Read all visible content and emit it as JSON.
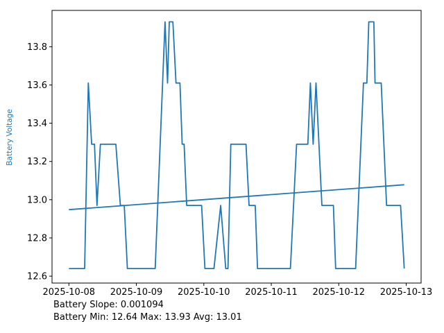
{
  "figure": {
    "ylabel": "Battery Voltage",
    "annotation_line1": "Battery Slope: 0.001094",
    "annotation_line2": "Battery Min: 12.64 Max: 13.93 Avg: 13.01",
    "accent_color": "#1f77b4",
    "text_color": "#000000",
    "background_color": "#ffffff"
  },
  "chart_data": {
    "type": "line",
    "title": "",
    "ylabel": "Battery Voltage",
    "xlabel_lines": [
      "Battery Slope: 0.001094",
      "Battery Min: 12.64 Max: 13.93 Avg: 13.01"
    ],
    "x_unit": "hours since 2025-10-08 00:00",
    "xlim": [
      -6,
      125.3
    ],
    "ylim": [
      12.564,
      13.99
    ],
    "x_ticks": [
      0,
      24,
      48,
      72,
      96,
      120
    ],
    "x_ticklabels": [
      "2025-10-08",
      "2025-10-09",
      "2025-10-10",
      "2025-10-11",
      "2025-10-12",
      "2025-10-13"
    ],
    "y_ticks": [
      12.6,
      12.8,
      13.0,
      13.2,
      13.4,
      13.6,
      13.8
    ],
    "y_ticklabels": [
      "12.6",
      "12.8",
      "13.0",
      "13.2",
      "13.4",
      "13.6",
      "13.8"
    ],
    "grid": false,
    "legend": null,
    "stats": {
      "slope": 0.001094,
      "min": 12.64,
      "max": 13.93,
      "avg": 13.01
    },
    "series": [
      {
        "name": "battery_voltage",
        "color": "#1f77b4",
        "points": [
          [
            0,
            12.64
          ],
          [
            5.6,
            12.64
          ],
          [
            6.9,
            13.61
          ],
          [
            8.1,
            13.29
          ],
          [
            9.1,
            13.29
          ],
          [
            10,
            12.97
          ],
          [
            11.2,
            13.29
          ],
          [
            16.7,
            13.29
          ],
          [
            18.3,
            12.97
          ],
          [
            19.7,
            12.97
          ],
          [
            20.8,
            12.64
          ],
          [
            30.7,
            12.64
          ],
          [
            34.2,
            13.93
          ],
          [
            35.1,
            13.61
          ],
          [
            35.7,
            13.93
          ],
          [
            37,
            13.93
          ],
          [
            38.1,
            13.61
          ],
          [
            39.5,
            13.61
          ],
          [
            40.3,
            13.29
          ],
          [
            41,
            13.29
          ],
          [
            41.9,
            12.97
          ],
          [
            47.2,
            12.97
          ],
          [
            48.4,
            12.64
          ],
          [
            51.6,
            12.64
          ],
          [
            54,
            12.97
          ],
          [
            55.8,
            12.64
          ],
          [
            56.6,
            12.64
          ],
          [
            57.6,
            13.29
          ],
          [
            63,
            13.29
          ],
          [
            64.1,
            12.97
          ],
          [
            66.3,
            12.97
          ],
          [
            67.1,
            12.64
          ],
          [
            78.8,
            12.64
          ],
          [
            81,
            13.29
          ],
          [
            85,
            13.29
          ],
          [
            85.9,
            13.61
          ],
          [
            86.9,
            13.29
          ],
          [
            87.9,
            13.61
          ],
          [
            90,
            12.97
          ],
          [
            94.1,
            12.97
          ],
          [
            94.9,
            12.64
          ],
          [
            102,
            12.64
          ],
          [
            104.8,
            13.61
          ],
          [
            106,
            13.61
          ],
          [
            106.7,
            13.93
          ],
          [
            108.5,
            13.93
          ],
          [
            108.9,
            13.61
          ],
          [
            111.1,
            13.61
          ],
          [
            113,
            12.97
          ],
          [
            118,
            12.97
          ],
          [
            119.3,
            12.64
          ]
        ]
      },
      {
        "name": "trend",
        "color": "#1f77b4",
        "points": [
          [
            0,
            12.948
          ],
          [
            119.3,
            13.078
          ]
        ]
      }
    ]
  }
}
